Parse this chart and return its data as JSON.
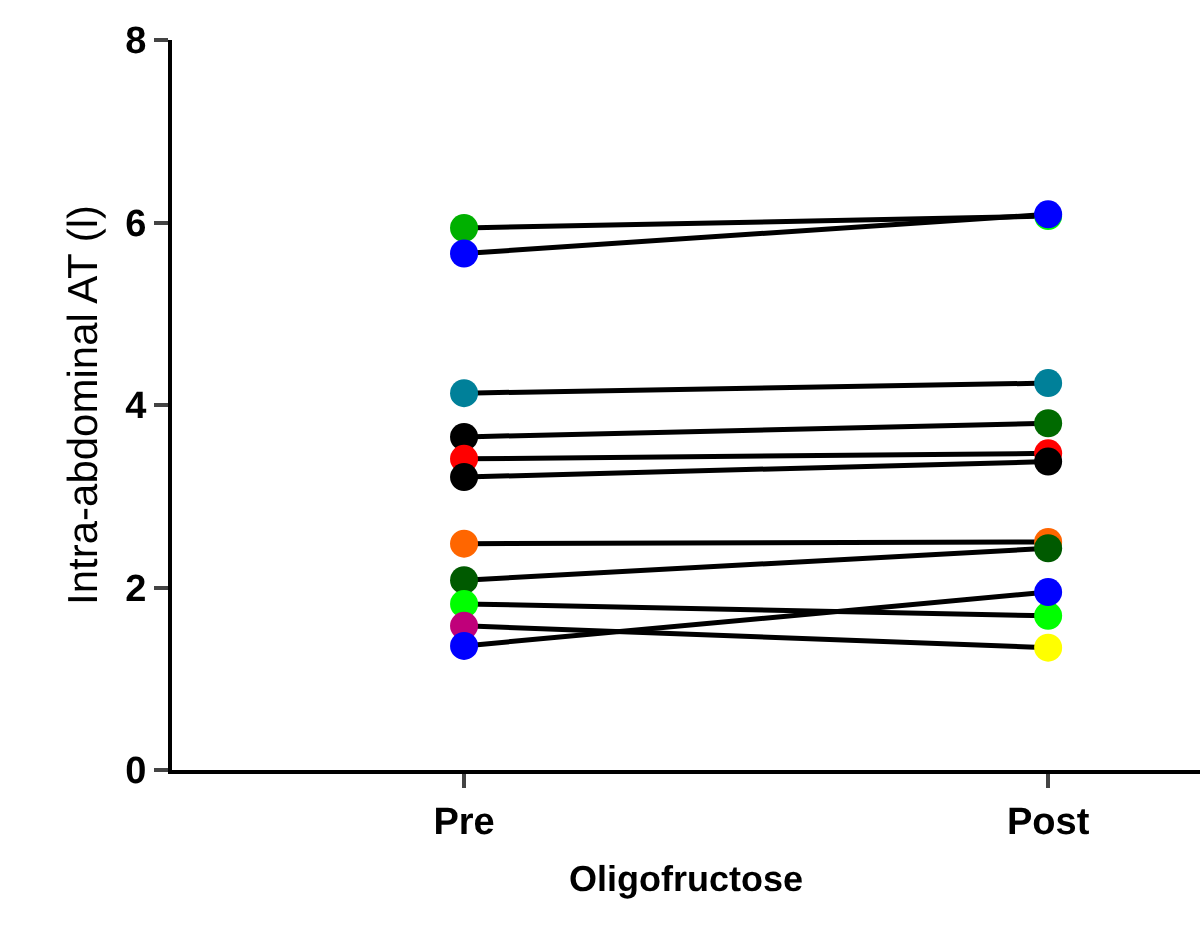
{
  "chart_data": {
    "type": "line",
    "categories": [
      "Pre",
      "Post"
    ],
    "xlabel": "Oligofructose",
    "ylabel": "Intra-abdominal AT (l)",
    "ylim": [
      0,
      8
    ],
    "yticks": [
      0,
      2,
      4,
      6,
      8
    ],
    "marker": "circle",
    "line_style": "solid",
    "series": [
      {
        "color": "#000000",
        "colors": [
          "#00b000",
          "#00ff00"
        ],
        "values": [
          5.94,
          6.07
        ]
      },
      {
        "color": "#000000",
        "colors": [
          "#0000ff",
          "#0000ff"
        ],
        "values": [
          5.66,
          6.09
        ]
      },
      {
        "color": "#000000",
        "colors": [
          "#008099",
          "#008099"
        ],
        "values": [
          4.13,
          4.24
        ]
      },
      {
        "color": "#000000",
        "colors": [
          "#000000",
          "#006a00"
        ],
        "values": [
          3.65,
          3.8
        ]
      },
      {
        "color": "#000000",
        "colors": [
          "#ff0000",
          "#ff0000"
        ],
        "values": [
          3.41,
          3.47
        ]
      },
      {
        "color": "#000000",
        "colors": [
          "#000000",
          "#000000"
        ],
        "values": [
          3.21,
          3.38
        ]
      },
      {
        "color": "#000000",
        "colors": [
          "#ff6600",
          "#ff6600"
        ],
        "values": [
          2.48,
          2.5
        ]
      },
      {
        "color": "#000000",
        "colors": [
          "#005a00",
          "#005a00"
        ],
        "values": [
          2.08,
          2.43
        ]
      },
      {
        "color": "#000000",
        "colors": [
          "#00ff00",
          "#00ff00"
        ],
        "values": [
          1.82,
          1.69
        ]
      },
      {
        "color": "#000000",
        "colors": [
          "#c0007a",
          "#ffff00"
        ],
        "values": [
          1.58,
          1.34
        ]
      },
      {
        "color": "#000000",
        "colors": [
          "#0000ff",
          "#0000ff"
        ],
        "values": [
          1.36,
          1.95
        ]
      }
    ]
  }
}
